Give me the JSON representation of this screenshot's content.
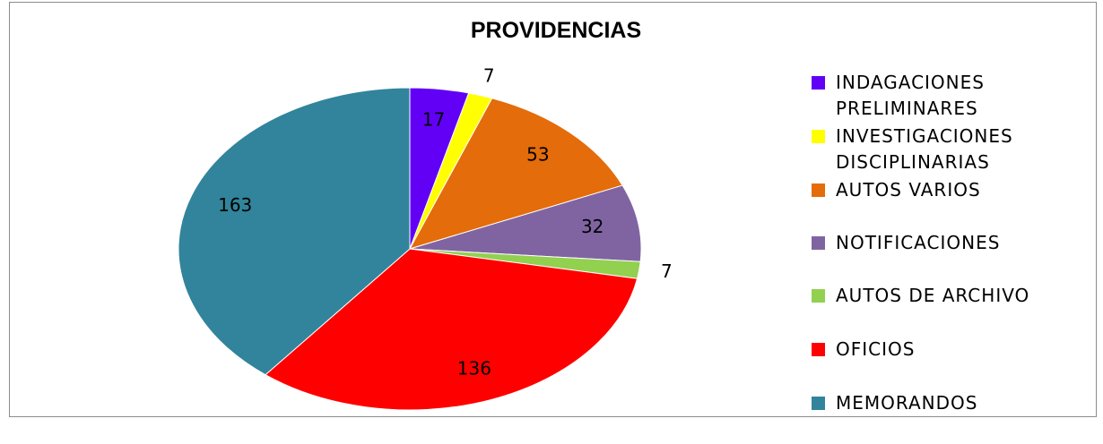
{
  "chart_data": {
    "type": "pie",
    "title": "PROVIDENCIAS",
    "categories": [
      "INDAGACIONES PRELIMINARES",
      "INVESTIGACIONES DISCIPLINARIAS",
      "AUTOS VARIOS",
      "NOTIFICACIONES",
      "AUTOS DE ARCHIVO",
      "OFICIOS",
      "MEMORANDOS"
    ],
    "values": [
      17,
      7,
      53,
      32,
      7,
      136,
      163
    ],
    "colors": [
      "#6200f5",
      "#ffff00",
      "#e46c0a",
      "#8064a2",
      "#92d050",
      "#ff0000",
      "#31849b"
    ],
    "legend": "right"
  }
}
